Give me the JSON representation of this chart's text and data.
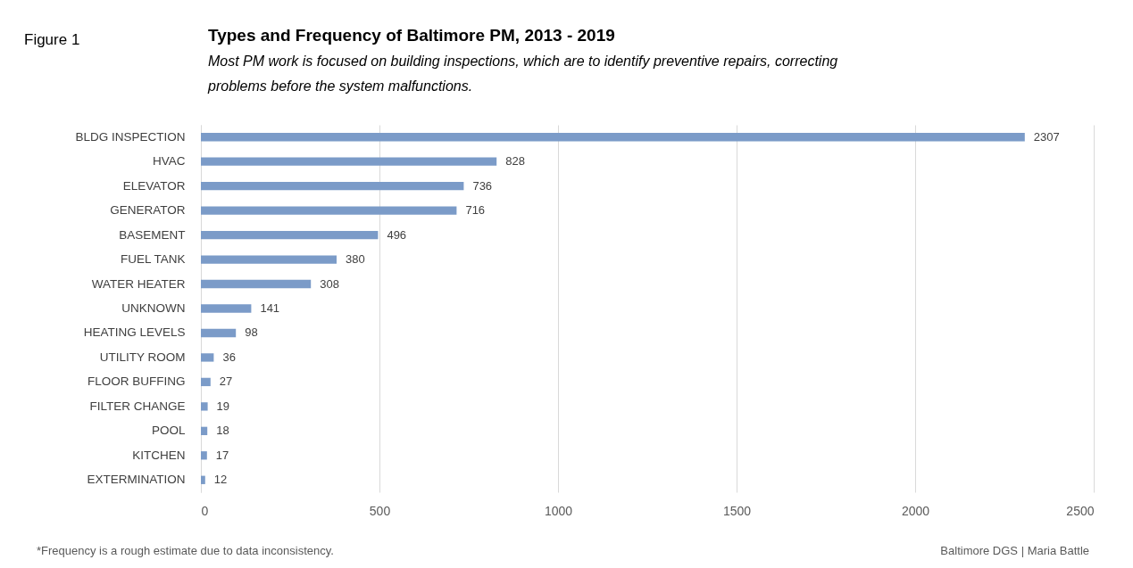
{
  "chart_data": {
    "type": "bar",
    "orientation": "horizontal",
    "title": "Types and Frequency of Baltimore PM, 2013 - 2019",
    "subtitle": "Most PM work  is focused on building inspections, which are to identify preventive repairs, correcting problems before the system malfunctions.",
    "categories": [
      "BLDG INSPECTION",
      "HVAC",
      "ELEVATOR",
      "GENERATOR",
      "BASEMENT",
      "FUEL TANK",
      "WATER HEATER",
      "UNKNOWN",
      "HEATING LEVELS",
      "UTILITY ROOM",
      "FLOOR BUFFING",
      "FILTER CHANGE",
      "POOL",
      "KITCHEN",
      "EXTERMINATION"
    ],
    "values": [
      2307,
      828,
      736,
      716,
      496,
      380,
      308,
      141,
      98,
      36,
      27,
      19,
      18,
      17,
      12
    ],
    "color": "#7b9bc8",
    "xlim": [
      0,
      2500
    ],
    "xticks": [
      0,
      500,
      1000,
      1500,
      2000,
      2500
    ],
    "grid": "x",
    "data_labels": true,
    "annotations": [
      "Figure 1",
      "*Frequency is a rough estimate due to data  inconsistency.",
      "Baltimore DGS | Maria Battle"
    ]
  }
}
